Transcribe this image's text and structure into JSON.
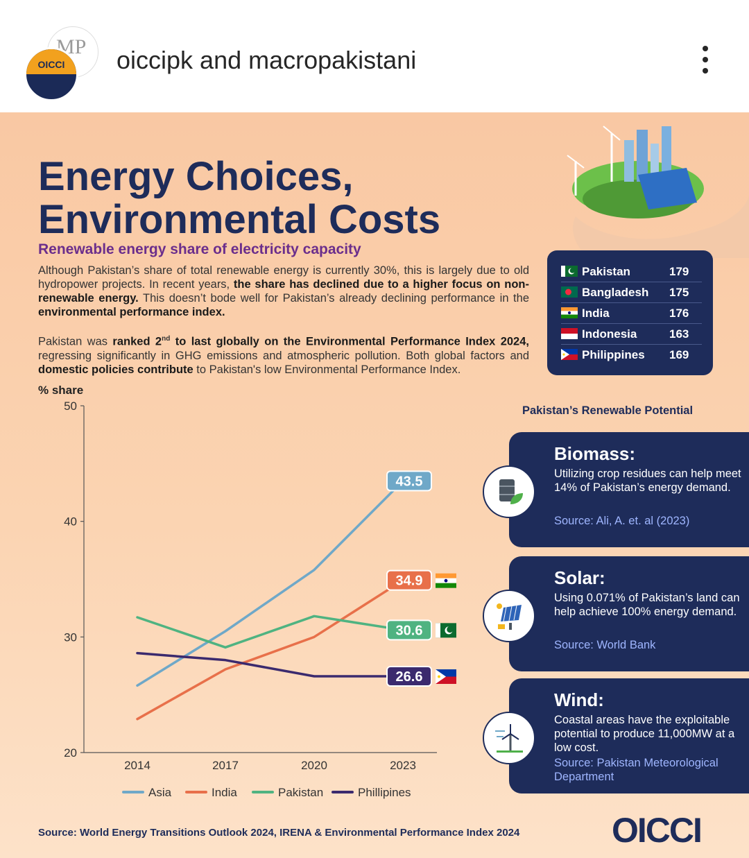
{
  "header": {
    "handle": "oiccipk and macropakistani",
    "avatar_back_text": "MP",
    "avatar_front_text": "OICCI"
  },
  "poster": {
    "title_line1": "Energy Choices,",
    "title_line2": "Environmental Costs",
    "subtitle": "Renewable energy share of electricity capacity",
    "para1": {
      "t1": "Although Pakistan’s share of total renewable energy is currently 30%, this is largely due to old hydropower projects. In recent years, ",
      "b1": "the share has declined due to a higher focus on non-renewable energy.",
      "t2": " This doesn’t bode well for Pakistan’s already declining performance in the ",
      "b2": "environmental performance index."
    },
    "para2": {
      "t1": "Pakistan was ",
      "b1a": "ranked 2",
      "sup": "nd",
      "b1b": " to last globally on the Environmental Performance Index 2024,",
      "t2": " regressing significantly in GHG emissions and atmospheric pollution. Both global factors and ",
      "b2": "domestic policies contribute",
      "t3": " to Pakistan's low Environmental Performance Index."
    },
    "ranking": [
      {
        "country": "Pakistan",
        "rank": "179",
        "flag": "pk-flag-icon"
      },
      {
        "country": "Bangladesh",
        "rank": "175",
        "flag": "bd-flag-icon"
      },
      {
        "country": "India",
        "rank": "176",
        "flag": "in-flag-icon"
      },
      {
        "country": "Indonesia",
        "rank": "163",
        "flag": "id-flag-icon"
      },
      {
        "country": "Philippines",
        "rank": "169",
        "flag": "ph-flag-icon"
      }
    ],
    "potential": {
      "title": "Pakistan’s Renewable Potential",
      "cards": [
        {
          "head": "Biomass:",
          "body": "Utilizing crop residues can help meet 14% of Pakistan’s energy demand.",
          "source": "Source: Ali, A. et. al (2023)",
          "icon": "biomass-barrel-icon"
        },
        {
          "head": "Solar:",
          "body": "Using 0.071% of Pakistan’s land can help achieve 100% energy demand.",
          "source": "Source: World Bank",
          "icon": "solar-panel-icon"
        },
        {
          "head": "Wind:",
          "body": "Coastal areas have the exploitable potential to produce 11,000MW at a low cost.",
          "source": "Source: Pakistan Meteorological Department",
          "icon": "wind-turbine-icon"
        }
      ]
    },
    "footer_source": "Source: World Energy Transitions Outlook 2024, IRENA & Environmental Performance Index 2024",
    "logo": "OICCI"
  },
  "chart_data": {
    "type": "line",
    "ylabel": "% share",
    "xlabel": "",
    "ylim": [
      20,
      50
    ],
    "yticks": [
      20,
      30,
      40,
      50
    ],
    "x": [
      "2014",
      "2017",
      "2020",
      "2023"
    ],
    "series": [
      {
        "name": "Asia",
        "values": [
          25.8,
          30.5,
          35.8,
          43.5
        ],
        "color": "#6fa8c8",
        "end_label": "43.5",
        "flag": ""
      },
      {
        "name": "India",
        "values": [
          22.9,
          27.2,
          30.0,
          34.9
        ],
        "color": "#e8704a",
        "end_label": "34.9",
        "flag": "in-flag-icon"
      },
      {
        "name": "Pakistan",
        "values": [
          31.7,
          29.1,
          31.8,
          30.6
        ],
        "color": "#4fb381",
        "end_label": "30.6",
        "flag": "pk-flag-icon"
      },
      {
        "name": "Phillipines",
        "values": [
          28.6,
          28.0,
          26.6,
          26.6
        ],
        "color": "#3b2a6e",
        "end_label": "26.6",
        "flag": "ph-flag-icon"
      }
    ],
    "grid": false,
    "legend": "bottom"
  }
}
